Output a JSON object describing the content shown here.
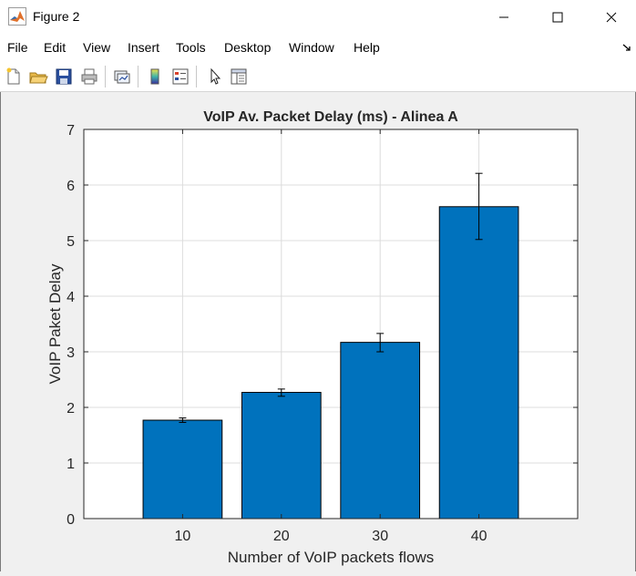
{
  "window": {
    "title": "Figure 2"
  },
  "menu": [
    "File",
    "Edit",
    "View",
    "Insert",
    "Tools",
    "Desktop",
    "Window",
    "Help"
  ],
  "toolbar": [
    {
      "name": "new-figure",
      "icon": "new-file-icon"
    },
    {
      "name": "open-file",
      "icon": "folder-open-icon"
    },
    {
      "name": "save-figure",
      "icon": "save-icon"
    },
    {
      "name": "print-figure",
      "icon": "printer-icon"
    },
    {
      "name": "link-plot",
      "icon": "link-plot-icon"
    },
    {
      "name": "insert-colorbar",
      "icon": "colorbar-icon"
    },
    {
      "name": "insert-legend",
      "icon": "legend-icon"
    },
    {
      "name": "edit-plot",
      "icon": "cursor-arrow-icon"
    },
    {
      "name": "property-inspector",
      "icon": "property-inspector-icon"
    }
  ],
  "chart_data": {
    "type": "bar",
    "title": "VoIP Av. Packet Delay (ms) - Alinea A",
    "xlabel": "Number of VoIP packets flows",
    "ylabel": "VoIP Paket Delay",
    "categories": [
      "10",
      "20",
      "30",
      "40"
    ],
    "x": [
      10,
      20,
      30,
      40
    ],
    "values": [
      1.77,
      2.27,
      3.17,
      5.61
    ],
    "error_low": [
      1.73,
      2.2,
      3.0,
      5.02
    ],
    "error_high": [
      1.81,
      2.33,
      3.33,
      6.21
    ],
    "xlim": [
      0,
      50
    ],
    "ylim": [
      0,
      7
    ],
    "yticks": [
      0,
      1,
      2,
      3,
      4,
      5,
      6,
      7
    ],
    "grid": true,
    "bar_color": "#0072bd"
  }
}
